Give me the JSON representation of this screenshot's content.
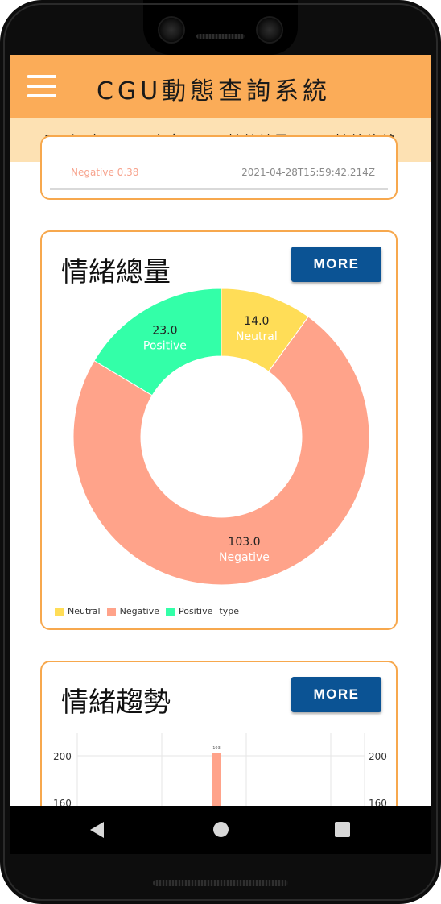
{
  "app": {
    "title": "CGU動態查詢系統"
  },
  "tabs": [
    {
      "label": "回到頂部"
    },
    {
      "label": "文章"
    },
    {
      "label": "情緒總量"
    },
    {
      "label": "情緒趨勢"
    }
  ],
  "top_card": {
    "negative_line": "Negative 0.38",
    "timestamp": "2021-04-28T15:59:42.214Z"
  },
  "sentiment_card": {
    "title": "情緒總量",
    "more_label": "MORE",
    "legend_suffix": "type"
  },
  "trend_card": {
    "title": "情緒趨勢",
    "more_label": "MORE"
  },
  "colors": {
    "appbar": "#fbac58",
    "tabbar": "#fde1b3",
    "card_border": "#f7a84d",
    "more_button": "#0b5394",
    "neutral": "#ffdd57",
    "negative": "#ffa38a",
    "positive": "#33ffa8"
  },
  "icons": {
    "menu": "hamburger-menu-icon",
    "nav_back": "triangle-back-icon",
    "nav_home": "circle-home-icon",
    "nav_recent": "square-recent-icon"
  },
  "chart_data": [
    {
      "type": "pie",
      "variant": "doughnut",
      "labels": [
        "Neutral",
        "Negative",
        "Positive"
      ],
      "values": [
        14.0,
        103.0,
        23.0
      ],
      "value_labels": [
        "14.0",
        "103.0",
        "23.0"
      ],
      "colors": [
        "#ffdd57",
        "#ffa38a",
        "#33ffa8"
      ],
      "legend": {
        "position": "bottom-left",
        "title": "type"
      }
    },
    {
      "type": "bar",
      "y_ticks": [
        "200",
        "160"
      ],
      "ylim": [
        0,
        200
      ],
      "bar_value": 103,
      "bar_label": "103",
      "grid": true,
      "partial": true
    }
  ]
}
